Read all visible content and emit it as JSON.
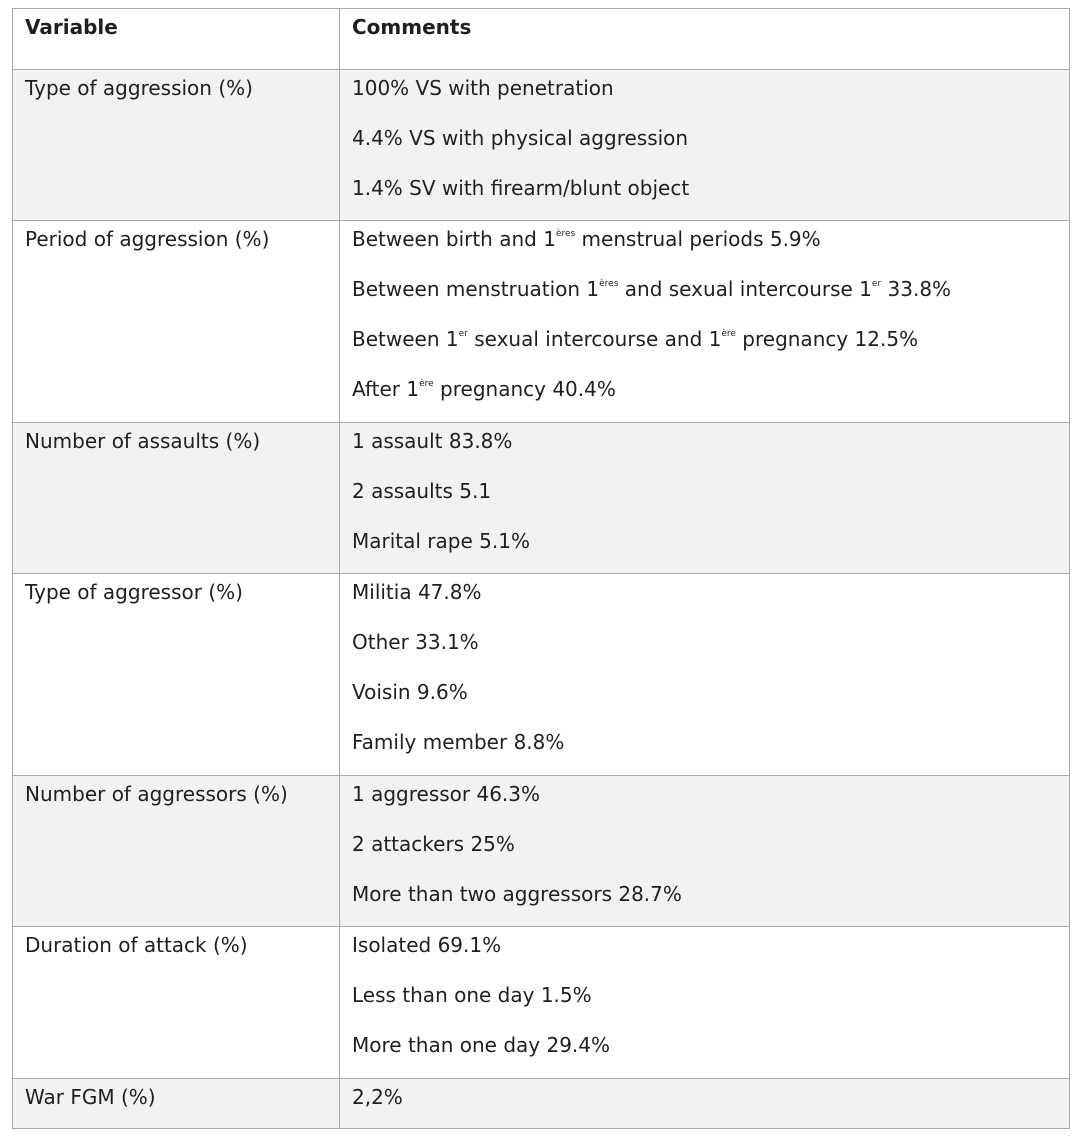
{
  "table": {
    "headers": {
      "variable": "Variable",
      "comments": "Comments"
    },
    "rows": [
      {
        "variable": "Type of aggression (%)",
        "comments": [
          [
            "100% VS with penetration"
          ],
          [
            "4.4% VS with physical aggression"
          ],
          [
            "1.4% SV with firearm/blunt object"
          ]
        ]
      },
      {
        "variable": "Period of aggression (%)",
        "comments": [
          [
            "Between birth and 1",
            "ères",
            " menstrual periods 5.9%"
          ],
          [
            "Between menstruation 1",
            "ères",
            " and sexual intercourse 1",
            "er",
            " 33.8%"
          ],
          [
            "Between 1",
            "er",
            " sexual intercourse and 1",
            "ère",
            " pregnancy 12.5%"
          ],
          [
            "After 1",
            "ère",
            " pregnancy 40.4%"
          ]
        ]
      },
      {
        "variable": "Number of assaults (%)",
        "comments": [
          [
            "1 assault 83.8%"
          ],
          [
            "2 assaults 5.1"
          ],
          [
            "Marital rape 5.1%"
          ]
        ]
      },
      {
        "variable": "Type of aggressor (%)",
        "comments": [
          [
            "Militia 47.8%"
          ],
          [
            "Other 33.1%"
          ],
          [
            "Voisin 9.6%"
          ],
          [
            "Family member 8.8%"
          ]
        ]
      },
      {
        "variable": "Number of aggressors (%)",
        "comments": [
          [
            "1 aggressor 46.3%"
          ],
          [
            "2 attackers 25%"
          ],
          [
            "More than two aggressors 28.7%"
          ]
        ]
      },
      {
        "variable": "Duration of attack (%)",
        "comments": [
          [
            "Isolated 69.1%"
          ],
          [
            "Less than one day 1.5%"
          ],
          [
            "More than one day 29.4%"
          ]
        ]
      },
      {
        "variable": "War FGM (%)",
        "comments": [
          [
            "2,2%"
          ]
        ]
      }
    ]
  }
}
